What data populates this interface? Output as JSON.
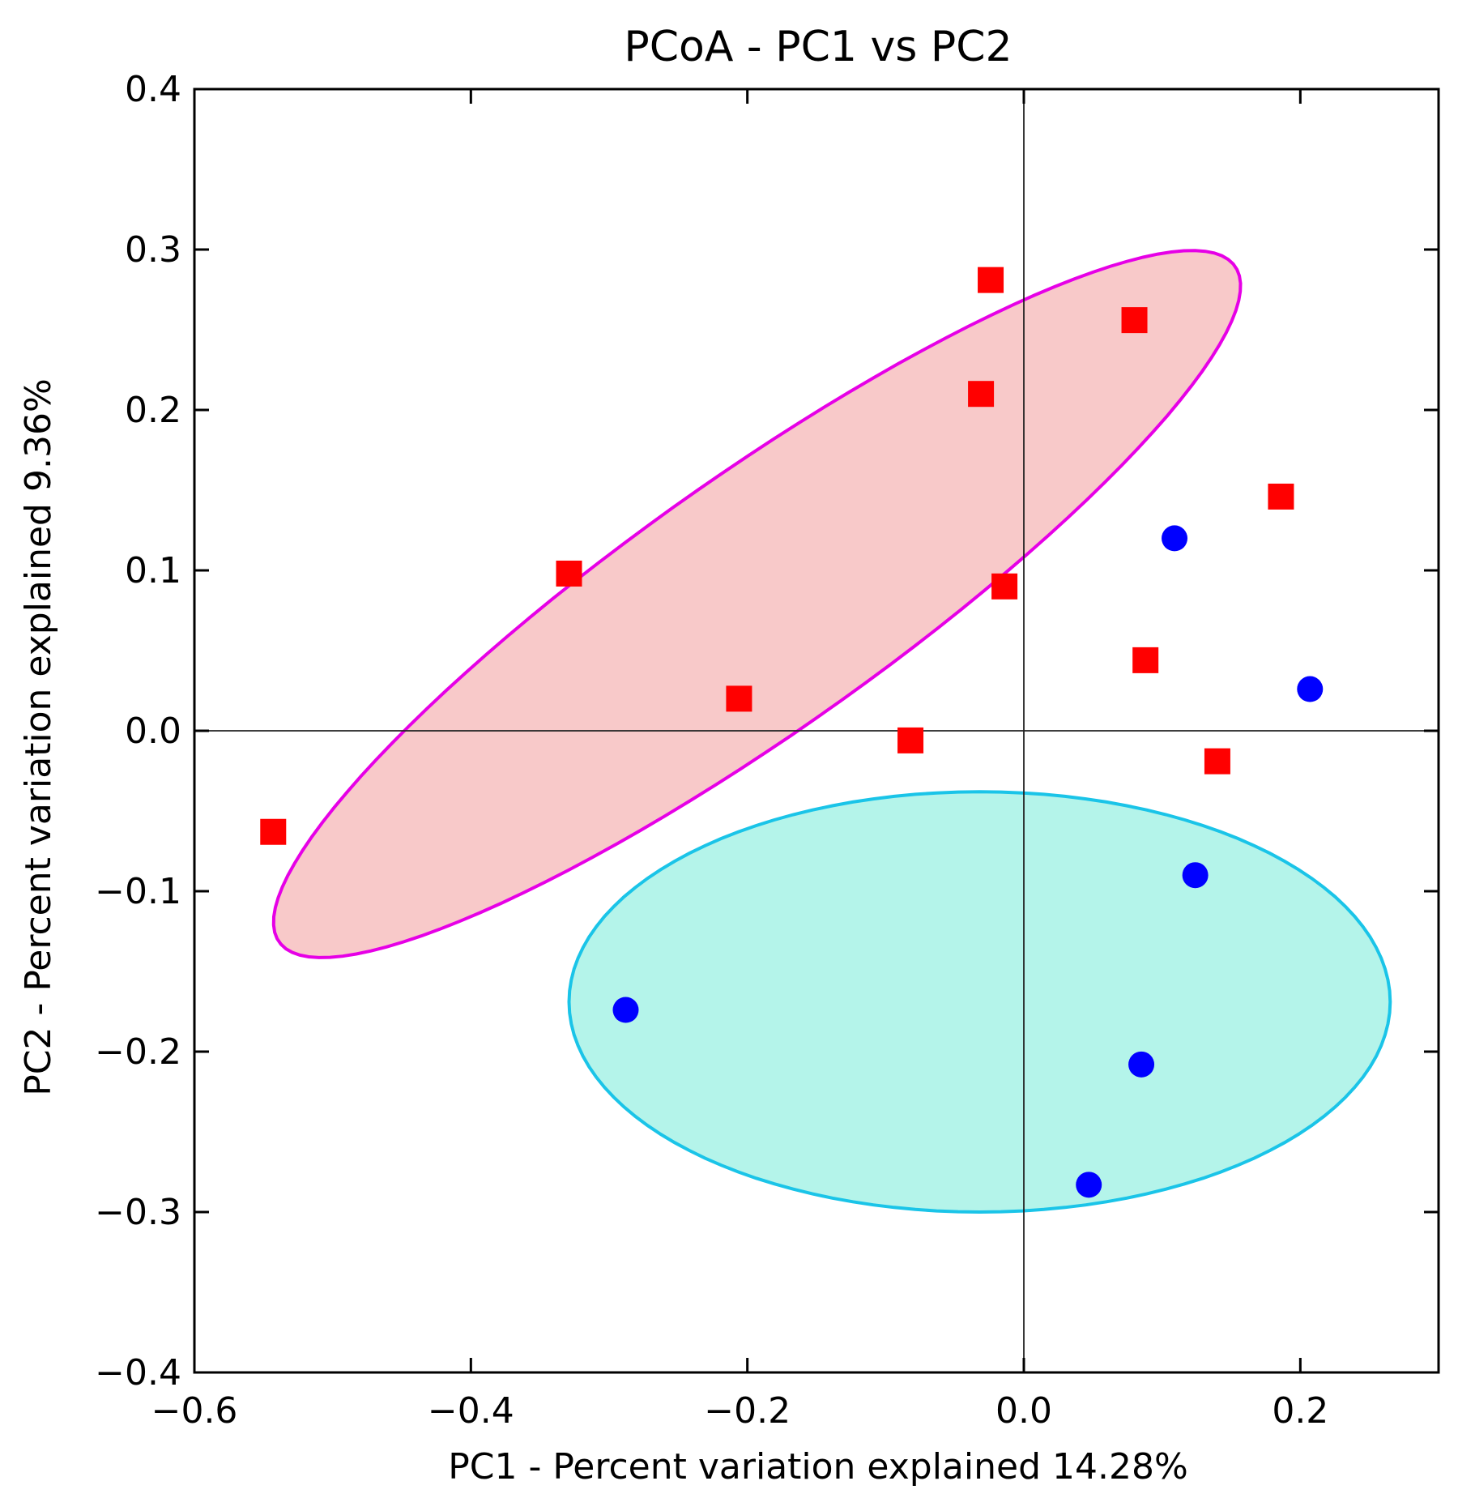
{
  "chart_data": {
    "type": "scatter",
    "title": "PCoA - PC1 vs PC2",
    "xlabel": "PC1 - Percent variation explained 14.28%",
    "ylabel": "PC2 - Percent variation explained 9.36%",
    "xlim": [
      -0.6,
      0.3
    ],
    "ylim": [
      -0.4,
      0.4
    ],
    "xticks": [
      -0.6,
      -0.4,
      -0.2,
      0.0,
      0.2
    ],
    "xtick_labels": [
      "−0.6",
      "−0.4",
      "−0.2",
      "0.0",
      "0.2"
    ],
    "yticks": [
      -0.4,
      -0.3,
      -0.2,
      -0.1,
      0.0,
      0.1,
      0.2,
      0.3,
      0.4
    ],
    "ytick_labels": [
      "−0.4",
      "−0.3",
      "−0.2",
      "−0.1",
      "0.0",
      "0.1",
      "0.2",
      "0.3",
      "0.4"
    ],
    "reference_lines": {
      "x": 0.0,
      "y": 0.0
    },
    "grid": false,
    "series": [
      {
        "name": "red-squares",
        "marker": "square",
        "color": "#ff0000",
        "points": [
          {
            "x": -0.543,
            "y": -0.063
          },
          {
            "x": -0.329,
            "y": 0.098
          },
          {
            "x": -0.206,
            "y": 0.02
          },
          {
            "x": -0.082,
            "y": -0.006
          },
          {
            "x": -0.024,
            "y": 0.281
          },
          {
            "x": -0.031,
            "y": 0.21
          },
          {
            "x": -0.014,
            "y": 0.09
          },
          {
            "x": 0.08,
            "y": 0.256
          },
          {
            "x": 0.088,
            "y": 0.044
          },
          {
            "x": 0.14,
            "y": -0.019
          },
          {
            "x": 0.186,
            "y": 0.146
          }
        ]
      },
      {
        "name": "blue-circles",
        "marker": "circle",
        "color": "#0000ff",
        "points": [
          {
            "x": -0.288,
            "y": -0.174
          },
          {
            "x": 0.047,
            "y": -0.283
          },
          {
            "x": 0.085,
            "y": -0.208
          },
          {
            "x": 0.124,
            "y": -0.09
          },
          {
            "x": 0.109,
            "y": 0.12
          },
          {
            "x": 0.207,
            "y": 0.026
          }
        ]
      }
    ],
    "ellipses": [
      {
        "name": "red-group-ellipse",
        "center": [
          -0.193,
          0.079
        ],
        "semi_axes": [
          0.405,
          0.083
        ],
        "angle_deg": 31,
        "fill": "#f8c9c9",
        "stroke": "#e600e6"
      },
      {
        "name": "blue-group-ellipse",
        "center": [
          -0.032,
          -0.169
        ],
        "semi_axes": [
          0.297,
          0.131
        ],
        "angle_deg": 0,
        "fill": "#b4f4ea",
        "stroke": "#1ac4e8"
      }
    ]
  }
}
